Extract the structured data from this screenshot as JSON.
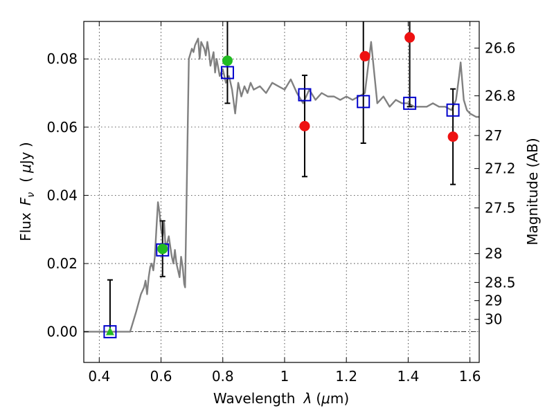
{
  "chart_data": {
    "type": "scatter",
    "xlabel_text": "Wavelength",
    "xlabel_symbol": "λ",
    "xlabel_unit_open": "(",
    "xlabel_unit_mu": "μ",
    "xlabel_unit_rest": "m)",
    "ylabel_text": "Flux",
    "ylabel_symbol": "F",
    "ylabel_sub": "ν",
    "ylabel_unit_open": "(",
    "ylabel_unit_mu": "μ",
    "ylabel_unit_rest": "Jy )",
    "y2label": "Magnitude (AB)",
    "xlim": [
      0.35,
      1.63
    ],
    "ylim": [
      -0.009,
      0.091
    ],
    "xticks": [
      {
        "value": 0.4,
        "label": "0.4"
      },
      {
        "value": 0.6,
        "label": "0.6"
      },
      {
        "value": 0.8,
        "label": "0.8"
      },
      {
        "value": 1.0,
        "label": "1"
      },
      {
        "value": 1.2,
        "label": "1.2"
      },
      {
        "value": 1.4,
        "label": "1.4"
      },
      {
        "value": 1.6,
        "label": "1.6"
      }
    ],
    "yticks": [
      {
        "value": 0.0,
        "label": "0.00"
      },
      {
        "value": 0.02,
        "label": "0.02"
      },
      {
        "value": 0.04,
        "label": "0.04"
      },
      {
        "value": 0.06,
        "label": "0.06"
      },
      {
        "value": 0.08,
        "label": "0.08"
      }
    ],
    "mag_ticks": [
      {
        "value": 26.6,
        "label": "26.6"
      },
      {
        "value": 26.8,
        "label": "26.8"
      },
      {
        "value": 27.0,
        "label": "27"
      },
      {
        "value": 27.2,
        "label": "27.2"
      },
      {
        "value": 27.5,
        "label": "27.5"
      },
      {
        "value": 28.0,
        "label": "28"
      },
      {
        "value": 28.5,
        "label": "28.5"
      },
      {
        "value": 29.0,
        "label": "29"
      },
      {
        "value": 30.0,
        "label": "30"
      }
    ],
    "grid": true,
    "zero_line": true,
    "colors": {
      "template": "#808080",
      "model": "#0000cc",
      "detected": "#22bb22",
      "nondetected": "#ee1111",
      "errorbar": "#000000"
    },
    "series": [
      {
        "name": "template_spectrum",
        "kind": "line",
        "x": [
          0.35,
          0.5,
          0.52,
          0.535,
          0.545,
          0.55,
          0.555,
          0.56,
          0.565,
          0.57,
          0.575,
          0.58,
          0.585,
          0.59,
          0.595,
          0.6,
          0.605,
          0.61,
          0.615,
          0.62,
          0.625,
          0.63,
          0.635,
          0.64,
          0.645,
          0.65,
          0.655,
          0.66,
          0.665,
          0.67,
          0.675,
          0.678,
          0.682,
          0.69,
          0.7,
          0.705,
          0.71,
          0.72,
          0.725,
          0.73,
          0.74,
          0.745,
          0.75,
          0.755,
          0.76,
          0.77,
          0.775,
          0.78,
          0.79,
          0.8,
          0.81,
          0.82,
          0.83,
          0.84,
          0.85,
          0.86,
          0.87,
          0.88,
          0.89,
          0.9,
          0.92,
          0.94,
          0.96,
          0.98,
          1.0,
          1.02,
          1.04,
          1.06,
          1.08,
          1.1,
          1.12,
          1.14,
          1.16,
          1.18,
          1.2,
          1.22,
          1.24,
          1.26,
          1.28,
          1.3,
          1.32,
          1.34,
          1.36,
          1.38,
          1.4,
          1.42,
          1.44,
          1.46,
          1.48,
          1.5,
          1.52,
          1.54,
          1.555,
          1.565,
          1.57,
          1.58,
          1.59,
          1.6,
          1.62,
          1.63
        ],
        "y": [
          0.0,
          0.0,
          0.006,
          0.011,
          0.013,
          0.015,
          0.011,
          0.016,
          0.019,
          0.02,
          0.018,
          0.022,
          0.03,
          0.038,
          0.035,
          0.03,
          0.028,
          0.032,
          0.024,
          0.026,
          0.028,
          0.025,
          0.022,
          0.02,
          0.024,
          0.02,
          0.018,
          0.016,
          0.022,
          0.019,
          0.014,
          0.013,
          0.035,
          0.08,
          0.083,
          0.082,
          0.084,
          0.086,
          0.08,
          0.085,
          0.083,
          0.081,
          0.085,
          0.082,
          0.078,
          0.082,
          0.076,
          0.08,
          0.075,
          0.077,
          0.073,
          0.075,
          0.071,
          0.064,
          0.073,
          0.069,
          0.072,
          0.07,
          0.073,
          0.071,
          0.072,
          0.07,
          0.073,
          0.072,
          0.071,
          0.074,
          0.07,
          0.067,
          0.071,
          0.068,
          0.07,
          0.069,
          0.069,
          0.068,
          0.069,
          0.068,
          0.069,
          0.07,
          0.085,
          0.067,
          0.069,
          0.066,
          0.068,
          0.067,
          0.067,
          0.066,
          0.066,
          0.066,
          0.067,
          0.066,
          0.066,
          0.065,
          0.068,
          0.075,
          0.079,
          0.068,
          0.065,
          0.064,
          0.063,
          0.063
        ]
      },
      {
        "name": "model_fluxes",
        "kind": "open-square",
        "x": [
          0.435,
          0.605,
          0.815,
          1.065,
          1.255,
          1.405,
          1.545
        ],
        "y": [
          0.0,
          0.024,
          0.076,
          0.0695,
          0.0675,
          0.067,
          0.065
        ]
      },
      {
        "name": "detected_fluxes",
        "kind": "filled-circle",
        "x": [
          0.605,
          0.815
        ],
        "y": [
          0.0243,
          0.0795
        ]
      },
      {
        "name": "nondetected_fluxes",
        "kind": "filled-circle",
        "x": [
          1.065,
          1.26,
          1.405,
          1.545
        ],
        "y": [
          0.0603,
          0.0808,
          0.0863,
          0.0572
        ]
      },
      {
        "name": "upper_limit",
        "kind": "triangle",
        "x": [
          0.435
        ],
        "y": [
          0.0
        ]
      }
    ],
    "errorbars": [
      {
        "x": 0.435,
        "y_low": -0.0005,
        "y_high": 0.0152
      },
      {
        "x": 0.605,
        "y_low": 0.0162,
        "y_high": 0.0325
      },
      {
        "x": 0.815,
        "y_low": 0.067,
        "y_high": 0.095
      },
      {
        "x": 1.065,
        "y_low": 0.0455,
        "y_high": 0.0752
      },
      {
        "x": 1.255,
        "y_low": 0.0553,
        "y_high": 0.095
      },
      {
        "x": 1.405,
        "y_low": 0.066,
        "y_high": 0.095
      },
      {
        "x": 1.545,
        "y_low": 0.0432,
        "y_high": 0.0712
      }
    ]
  }
}
